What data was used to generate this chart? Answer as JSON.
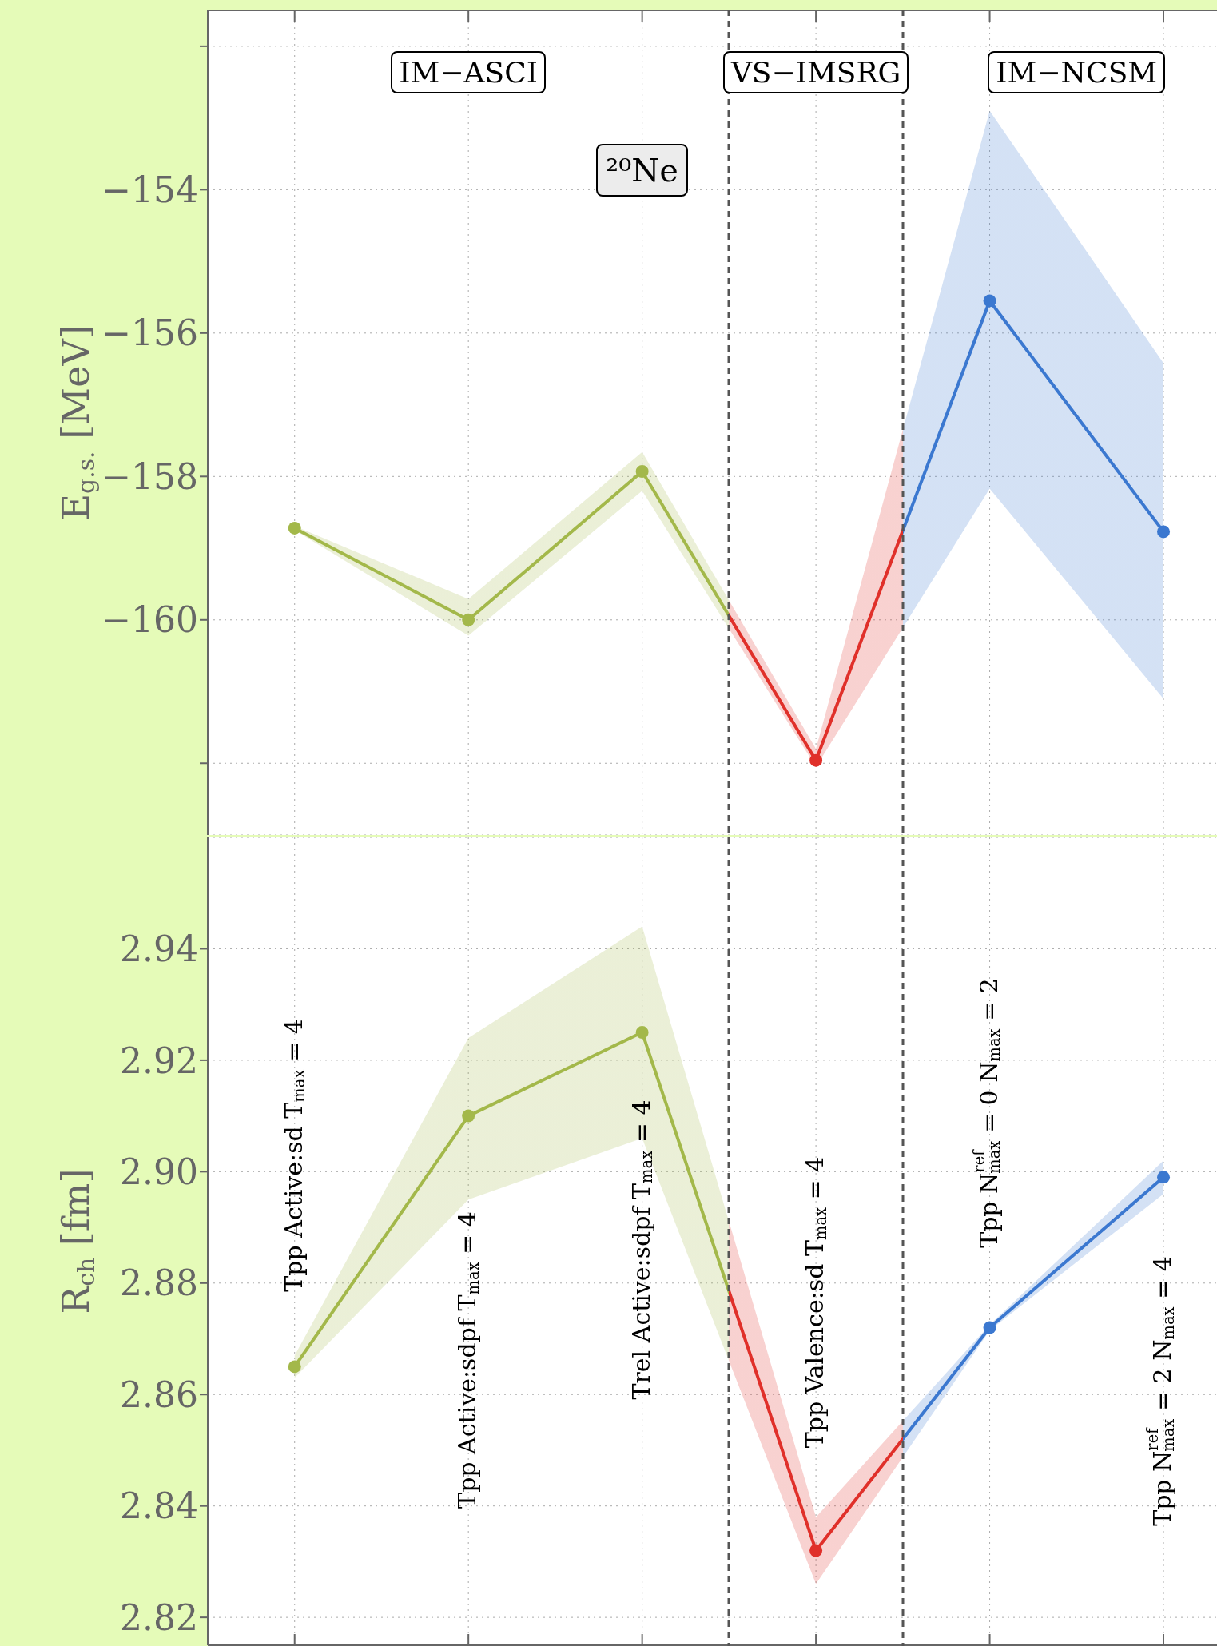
{
  "chart_data": [
    {
      "type": "line",
      "title": "²⁰Ne",
      "ylabel": "E$_{g.s.}$ [MeV]",
      "categories": [
        null,
        null,
        null,
        null,
        null,
        null
      ],
      "ylim": [
        -163,
        -151.5
      ],
      "yticks": [
        {
          "value": -152,
          "label": null
        },
        {
          "value": -154,
          "label": "−154"
        },
        {
          "value": -156,
          "label": "−156"
        },
        {
          "value": -158,
          "label": "−158"
        },
        {
          "value": -160,
          "label": "−160"
        },
        {
          "value": -162,
          "label": null
        }
      ],
      "tick_labels": "y",
      "grid": true,
      "marker": "circle",
      "line_style": "solid",
      "series": [
        {
          "colors": [
            "#a3b84a",
            "#a3b84a",
            "#a3b84a",
            "#e0302a",
            "#3b78d0",
            "#3b78d0"
          ],
          "values": [
            -158.72,
            -160.0,
            -157.93,
            -161.96,
            -155.55,
            -158.77
          ],
          "lower": [
            -158.75,
            -160.22,
            -158.2,
            -162.05,
            -158.17,
            -161.1
          ],
          "upper": [
            -158.69,
            -159.71,
            -157.66,
            -161.8,
            -152.9,
            -156.42
          ]
        }
      ],
      "annotations": [
        "IM−ASCI",
        "VS−IMSRG",
        "IM−NCSM"
      ]
    },
    {
      "type": "line",
      "ylabel": "R$_{ch}$ [fm]",
      "categories": [
        "Tpp Active:sd T$_{max}$ = 4",
        "Tpp Active:sdpf T$_{max}$ = 4",
        "Trel Active:sdpf T$_{max}$ = 4",
        "Tpp Valence:sd T$_{max}$ = 4",
        "Tpp N$^{ref}$$_{max}$ = 0 N$_{max}$ = 2",
        "Tpp N$^{ref}$$_{max}$ = 2 N$_{max}$ = 4"
      ],
      "ylim": [
        2.815,
        2.96
      ],
      "yticks": [
        {
          "value": 2.82,
          "label": "2.82"
        },
        {
          "value": 2.84,
          "label": "2.84"
        },
        {
          "value": 2.86,
          "label": "2.86"
        },
        {
          "value": 2.88,
          "label": "2.88"
        },
        {
          "value": 2.9,
          "label": "2.90"
        },
        {
          "value": 2.92,
          "label": "2.92"
        },
        {
          "value": 2.94,
          "label": "2.94"
        }
      ],
      "grid": true,
      "marker": "circle",
      "line_style": "solid",
      "series": [
        {
          "colors": [
            "#a3b84a",
            "#a3b84a",
            "#a3b84a",
            "#e0302a",
            "#3b78d0",
            "#3b78d0"
          ],
          "values": [
            2.865,
            2.91,
            2.925,
            2.832,
            2.872,
            2.899
          ],
          "lower": [
            2.863,
            2.895,
            2.906,
            2.826,
            2.8715,
            2.896
          ],
          "upper": [
            2.867,
            2.924,
            2.944,
            2.838,
            2.8725,
            2.902
          ]
        }
      ]
    }
  ]
}
